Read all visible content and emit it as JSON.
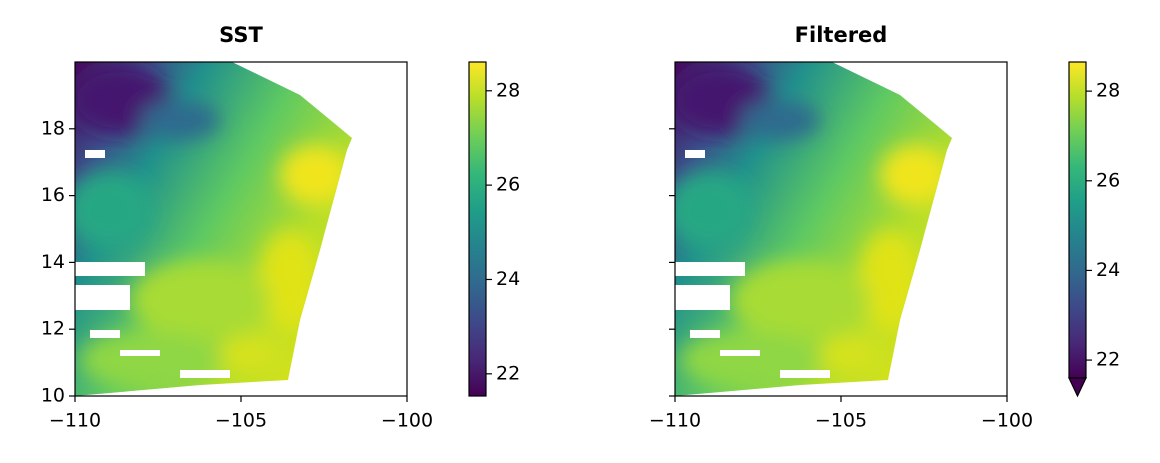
{
  "chart_data": [
    {
      "type": "heatmap",
      "title": "SST",
      "xlim": [
        -110,
        -100
      ],
      "ylim": [
        10,
        20
      ],
      "xticks": [
        {
          "value": -110,
          "label": "−110"
        },
        {
          "value": -105,
          "label": "−105"
        },
        {
          "value": -100,
          "label": "−100"
        }
      ],
      "yticks": [
        10,
        12,
        14,
        16,
        18
      ],
      "ytick_labels": true,
      "colorbar": {
        "cmap": "viridis",
        "clim": [
          21.53,
          28.61
        ],
        "ticks": [
          22,
          24,
          26,
          28
        ],
        "extend": "neither"
      }
    },
    {
      "type": "heatmap",
      "title": "Filtered",
      "xlim": [
        -110,
        -100
      ],
      "ylim": [
        10,
        20
      ],
      "xticks": [
        {
          "value": -110,
          "label": "−110"
        },
        {
          "value": -105,
          "label": "−105"
        },
        {
          "value": -100,
          "label": "−100"
        }
      ],
      "yticks": [
        10,
        12,
        14,
        16,
        18
      ],
      "ytick_labels": false,
      "colorbar": {
        "cmap": "viridis",
        "clim": [
          21.6,
          28.65
        ],
        "ticks": [
          22,
          24,
          26,
          28
        ],
        "extend": "min"
      }
    }
  ]
}
